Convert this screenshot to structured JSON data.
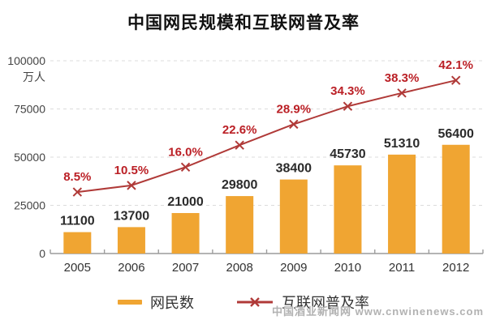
{
  "title": "中国网民规模和互联网普及率",
  "chart_data": {
    "type": "bar",
    "combo": [
      "bar",
      "line"
    ],
    "title": "中国网民规模和互联网普及率",
    "categories": [
      "2005",
      "2006",
      "2007",
      "2008",
      "2009",
      "2010",
      "2011",
      "2012"
    ],
    "series": [
      {
        "name": "网民数",
        "type": "bar",
        "axis": "left",
        "color": "#F0A532",
        "values": [
          11100,
          13700,
          21000,
          29800,
          38400,
          45730,
          51310,
          56400
        ],
        "labels": [
          "11100",
          "13700",
          "21000",
          "29800",
          "38400",
          "45730",
          "51310",
          "56400"
        ]
      },
      {
        "name": "互联网普及率",
        "type": "line",
        "axis": "right",
        "color": "#B03A38",
        "marker": "x",
        "values": [
          8.5,
          10.5,
          16.0,
          22.6,
          28.9,
          34.3,
          38.3,
          42.1
        ],
        "labels": [
          "8.5%",
          "10.5%",
          "16.0%",
          "22.6%",
          "28.9%",
          "34.3%",
          "38.3%",
          "42.1%"
        ]
      }
    ],
    "ylabel": "万人",
    "yticks": [
      0,
      25000,
      50000,
      75000,
      100000
    ],
    "ytick_labels": [
      "0",
      "25000",
      "50000",
      "75000",
      "100000"
    ],
    "ylim": [
      0,
      100000
    ],
    "y2lim": [
      -10,
      48
    ],
    "grid": "horizontal-dashed",
    "legend_position": "bottom"
  },
  "legend": {
    "items": [
      {
        "label": "网民数",
        "swatch": "bar",
        "color": "#F0A532"
      },
      {
        "label": "互联网普及率",
        "swatch": "line-x-marker",
        "color": "#B03A38"
      }
    ]
  },
  "watermark": "中国酒业新闻网 www.cnwinenews.com",
  "colors": {
    "bar": "#F0A532",
    "line": "#B03A38",
    "percent_label": "#BB2026",
    "value_label": "#2B2B2B",
    "axis_text": "#444444",
    "year_text": "#333333",
    "grid": "#DCDCDC",
    "axis_line": "#9C9C9C",
    "title": "#111111",
    "watermark": "#B2B2B2"
  }
}
